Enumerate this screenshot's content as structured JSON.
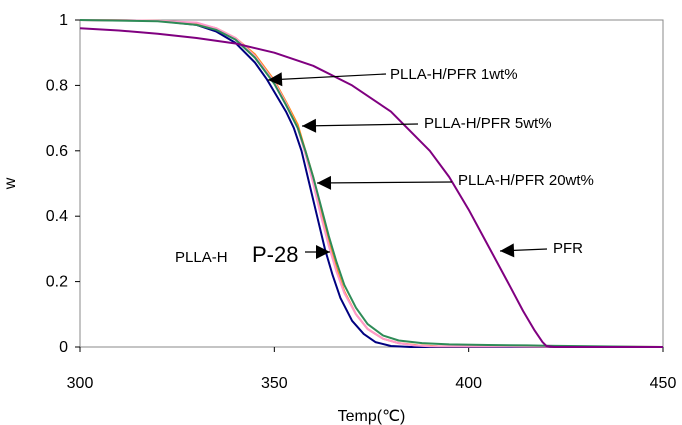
{
  "chart_data": {
    "type": "line",
    "xlabel": "Temp(℃)",
    "ylabel": "w",
    "xlim": [
      300,
      450
    ],
    "ylim": [
      0,
      1
    ],
    "x_ticks": [
      "300",
      "350",
      "400",
      "450"
    ],
    "y_ticks": [
      "0",
      "0.2",
      "0.4",
      "0.6",
      "0.8",
      "1"
    ],
    "grid": false,
    "legend": "none (inline arrow annotations)",
    "series": [
      {
        "color": "#000080",
        "points": [
          [
            300,
            1.0
          ],
          [
            320,
            0.998
          ],
          [
            330,
            0.985
          ],
          [
            335,
            0.965
          ],
          [
            340,
            0.93
          ],
          [
            345,
            0.87
          ],
          [
            348,
            0.82
          ],
          [
            350,
            0.78
          ],
          [
            353,
            0.72
          ],
          [
            355,
            0.67
          ],
          [
            357,
            0.6
          ],
          [
            359,
            0.5
          ],
          [
            361,
            0.4
          ],
          [
            363,
            0.3
          ],
          [
            365,
            0.22
          ],
          [
            367,
            0.15
          ],
          [
            370,
            0.08
          ],
          [
            373,
            0.04
          ],
          [
            376,
            0.015
          ],
          [
            380,
            0.003
          ],
          [
            385,
            0.0
          ],
          [
            450,
            0.0
          ]
        ]
      },
      {
        "color": "#FF8C1A",
        "points": [
          [
            300,
            1.0
          ],
          [
            320,
            0.998
          ],
          [
            330,
            0.99
          ],
          [
            335,
            0.975
          ],
          [
            340,
            0.945
          ],
          [
            345,
            0.895
          ],
          [
            350,
            0.815
          ],
          [
            353,
            0.75
          ],
          [
            356,
            0.68
          ],
          [
            358,
            0.6
          ],
          [
            360,
            0.52
          ],
          [
            362,
            0.42
          ],
          [
            364,
            0.32
          ],
          [
            366,
            0.24
          ],
          [
            368,
            0.17
          ],
          [
            371,
            0.1
          ],
          [
            374,
            0.055
          ],
          [
            378,
            0.025
          ],
          [
            382,
            0.012
          ],
          [
            387,
            0.005
          ],
          [
            392,
            0.002
          ],
          [
            450,
            0.0
          ]
        ]
      },
      {
        "color": "#FF99CC",
        "points": [
          [
            300,
            1.0
          ],
          [
            320,
            0.998
          ],
          [
            330,
            0.992
          ],
          [
            335,
            0.975
          ],
          [
            340,
            0.945
          ],
          [
            345,
            0.89
          ],
          [
            350,
            0.81
          ],
          [
            353,
            0.745
          ],
          [
            356,
            0.67
          ],
          [
            358,
            0.59
          ],
          [
            360,
            0.5
          ],
          [
            362,
            0.4
          ],
          [
            364,
            0.31
          ],
          [
            366,
            0.23
          ],
          [
            368,
            0.165
          ],
          [
            371,
            0.1
          ],
          [
            374,
            0.055
          ],
          [
            378,
            0.025
          ],
          [
            382,
            0.012
          ],
          [
            386,
            0.005
          ],
          [
            390,
            0.002
          ],
          [
            450,
            0.0
          ]
        ]
      },
      {
        "color": "#2E8B57",
        "points": [
          [
            300,
            1.0
          ],
          [
            320,
            0.996
          ],
          [
            330,
            0.985
          ],
          [
            335,
            0.97
          ],
          [
            340,
            0.94
          ],
          [
            345,
            0.885
          ],
          [
            350,
            0.805
          ],
          [
            353,
            0.74
          ],
          [
            356,
            0.67
          ],
          [
            358,
            0.6
          ],
          [
            360,
            0.52
          ],
          [
            362,
            0.43
          ],
          [
            364,
            0.34
          ],
          [
            366,
            0.26
          ],
          [
            368,
            0.19
          ],
          [
            371,
            0.12
          ],
          [
            374,
            0.07
          ],
          [
            378,
            0.035
          ],
          [
            382,
            0.02
          ],
          [
            388,
            0.012
          ],
          [
            395,
            0.008
          ],
          [
            405,
            0.006
          ],
          [
            415,
            0.005
          ],
          [
            420,
            0.004
          ],
          [
            450,
            0.0
          ]
        ]
      },
      {
        "color": "#800080",
        "points": [
          [
            300,
            0.975
          ],
          [
            310,
            0.968
          ],
          [
            320,
            0.958
          ],
          [
            330,
            0.945
          ],
          [
            340,
            0.928
          ],
          [
            350,
            0.9
          ],
          [
            360,
            0.86
          ],
          [
            370,
            0.8
          ],
          [
            380,
            0.72
          ],
          [
            390,
            0.6
          ],
          [
            395,
            0.52
          ],
          [
            400,
            0.42
          ],
          [
            405,
            0.31
          ],
          [
            410,
            0.2
          ],
          [
            414,
            0.11
          ],
          [
            417,
            0.05
          ],
          [
            419,
            0.015
          ],
          [
            420,
            0.003
          ],
          [
            422,
            0.0
          ],
          [
            450,
            0.0
          ]
        ]
      }
    ],
    "annotations": [
      {
        "text": "PLLA-H/PFR 1wt%"
      },
      {
        "text": "PLLA-H/PFR 5wt%"
      },
      {
        "text": "PLLA-H/PFR 20wt%"
      },
      {
        "text": "PFR"
      },
      {
        "text": "PLLA-H"
      },
      {
        "text": "P-28"
      }
    ]
  }
}
